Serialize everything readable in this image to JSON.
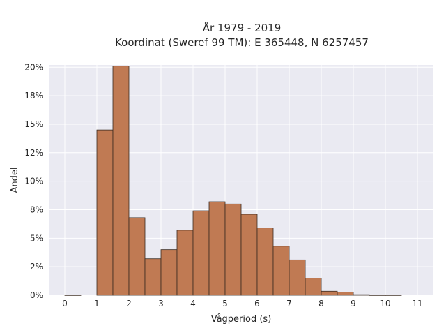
{
  "chart_data": {
    "type": "bar",
    "title_lines": [
      "År 1979 - 2019",
      "Koordinat (Sweref 99 TM): E 365448, N 6257457"
    ],
    "xlabel": "Vågperiod (s)",
    "ylabel": "Andel",
    "xlim": [
      -0.5,
      11.5
    ],
    "ylim": [
      0,
      20.2
    ],
    "x_ticks": [
      0,
      1,
      2,
      3,
      4,
      5,
      6,
      7,
      8,
      9,
      10,
      11
    ],
    "y_ticks": [
      0,
      2.5,
      5,
      7.5,
      10,
      12.5,
      15,
      17.5,
      20
    ],
    "y_tick_labels": [
      "0%",
      "2%",
      "5%",
      "8%",
      "10%",
      "12%",
      "15%",
      "18%",
      "20%"
    ],
    "bin_width": 0.5,
    "bins": [
      {
        "start": 0.0,
        "value": 0.03
      },
      {
        "start": 1.0,
        "value": 14.5
      },
      {
        "start": 1.5,
        "value": 20.1
      },
      {
        "start": 2.0,
        "value": 6.8
      },
      {
        "start": 2.5,
        "value": 3.2
      },
      {
        "start": 3.0,
        "value": 4.0
      },
      {
        "start": 3.5,
        "value": 5.7
      },
      {
        "start": 4.0,
        "value": 7.4
      },
      {
        "start": 4.5,
        "value": 8.2
      },
      {
        "start": 5.0,
        "value": 8.0
      },
      {
        "start": 5.5,
        "value": 7.1
      },
      {
        "start": 6.0,
        "value": 5.9
      },
      {
        "start": 6.5,
        "value": 4.3
      },
      {
        "start": 7.0,
        "value": 3.1
      },
      {
        "start": 7.5,
        "value": 1.5
      },
      {
        "start": 8.0,
        "value": 0.35
      },
      {
        "start": 8.5,
        "value": 0.28
      },
      {
        "start": 9.0,
        "value": 0.05
      },
      {
        "start": 9.5,
        "value": 0.03
      },
      {
        "start": 10.0,
        "value": 0.03
      }
    ],
    "bar_color": "#c07a53",
    "edge_color": "#3a2a20",
    "plot_background": "#eaeaf2",
    "grid": true
  }
}
